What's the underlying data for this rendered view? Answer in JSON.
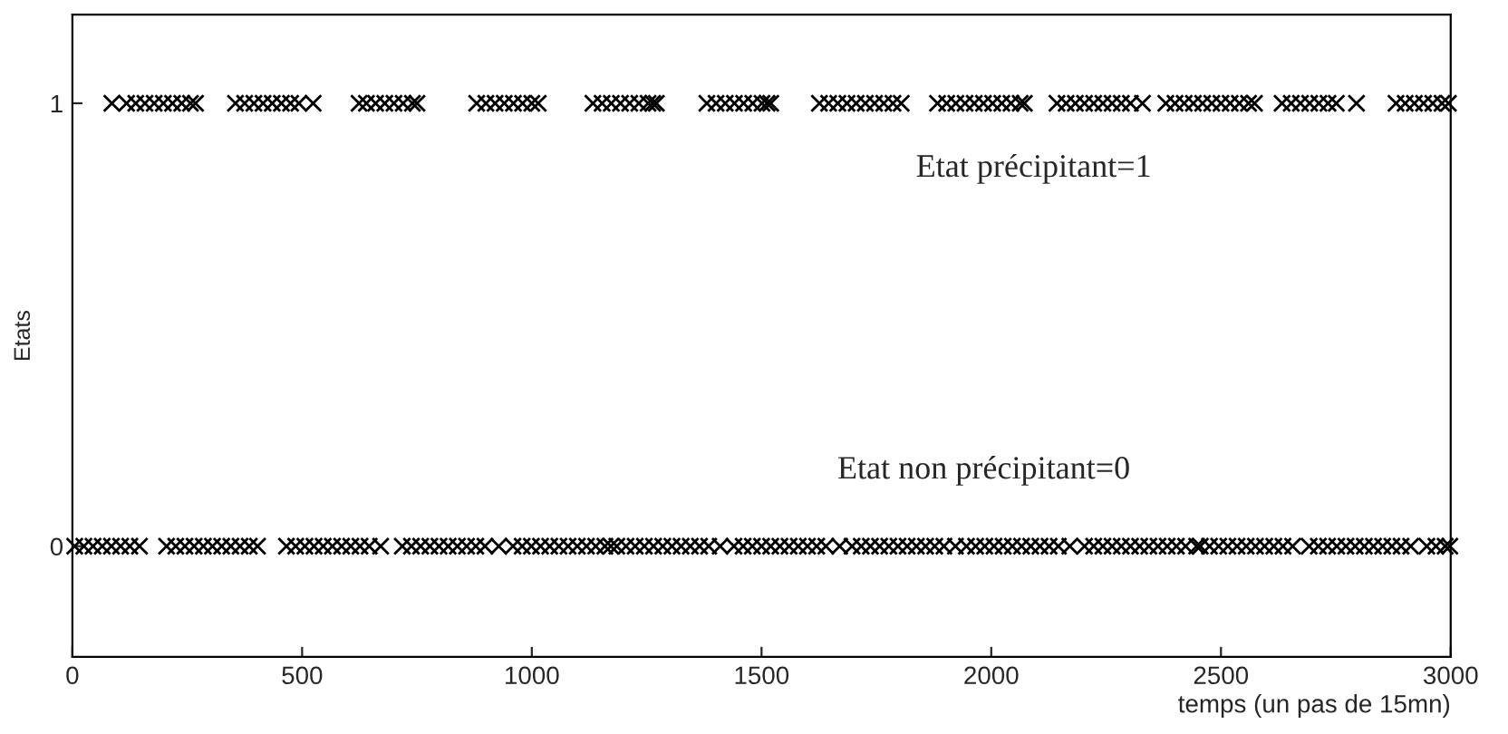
{
  "chart_data": {
    "type": "scatter",
    "xlabel": "temps (un pas de 15mn)",
    "ylabel": "Etats",
    "xlim": [
      0,
      3000
    ],
    "xticks": [
      0,
      500,
      1000,
      1500,
      2000,
      2500,
      3000
    ],
    "ylim": [
      -0.25,
      1.2
    ],
    "yticks": [
      0,
      1
    ],
    "grid": false,
    "legend": false,
    "marker": "cross",
    "annotations": [
      "Etat précipitant=1",
      "Etat non précipitant=0"
    ],
    "series": [
      {
        "color": "#000000",
        "x": [
          86,
          118,
          138,
          158,
          178,
          198,
          218,
          238,
          257,
          268,
          355,
          375,
          395,
          415,
          435,
          455,
          475,
          493,
          524,
          624,
          640,
          660,
          680,
          700,
          720,
          740,
          750,
          880,
          900,
          920,
          940,
          960,
          980,
          1000,
          1014,
          1133,
          1153,
          1173,
          1193,
          1213,
          1233,
          1253,
          1263,
          1271,
          1381,
          1401,
          1421,
          1441,
          1461,
          1481,
          1501,
          1512,
          1520,
          1626,
          1646,
          1666,
          1686,
          1706,
          1726,
          1746,
          1766,
          1786,
          1804,
          1883,
          1903,
          1923,
          1943,
          1963,
          1983,
          2003,
          2023,
          2043,
          2063,
          2072,
          2143,
          2163,
          2183,
          2203,
          2223,
          2243,
          2263,
          2283,
          2303,
          2329,
          2380,
          2400,
          2420,
          2440,
          2460,
          2480,
          2500,
          2520,
          2540,
          2560,
          2573,
          2633,
          2653,
          2673,
          2693,
          2713,
          2733,
          2751,
          2795,
          2881,
          2901,
          2921,
          2941,
          2961,
          2981,
          2995
        ],
        "values": [
          1,
          1,
          1,
          1,
          1,
          1,
          1,
          1,
          1,
          1,
          1,
          1,
          1,
          1,
          1,
          1,
          1,
          1,
          1,
          1,
          1,
          1,
          1,
          1,
          1,
          1,
          1,
          1,
          1,
          1,
          1,
          1,
          1,
          1,
          1,
          1,
          1,
          1,
          1,
          1,
          1,
          1,
          1,
          1,
          1,
          1,
          1,
          1,
          1,
          1,
          1,
          1,
          1,
          1,
          1,
          1,
          1,
          1,
          1,
          1,
          1,
          1,
          1,
          1,
          1,
          1,
          1,
          1,
          1,
          1,
          1,
          1,
          1,
          1,
          1,
          1,
          1,
          1,
          1,
          1,
          1,
          1,
          1,
          1,
          1,
          1,
          1,
          1,
          1,
          1,
          1,
          1,
          1,
          1,
          1,
          1,
          1,
          1,
          1,
          1,
          1,
          1,
          1,
          1,
          1,
          1,
          1,
          1,
          1,
          1
        ]
      },
      {
        "color": "#000000",
        "x": [
          5,
          25,
          45,
          65,
          85,
          105,
          125,
          146,
          205,
          225,
          245,
          265,
          285,
          305,
          325,
          345,
          365,
          385,
          403,
          466,
          486,
          506,
          526,
          546,
          566,
          586,
          606,
          626,
          646,
          671,
          718,
          738,
          758,
          778,
          798,
          818,
          838,
          858,
          878,
          898,
          928,
          959,
          979,
          999,
          1019,
          1039,
          1059,
          1079,
          1099,
          1119,
          1139,
          1159,
          1172,
          1185,
          1205,
          1225,
          1245,
          1265,
          1285,
          1305,
          1325,
          1345,
          1365,
          1385,
          1410,
          1440,
          1460,
          1480,
          1500,
          1520,
          1540,
          1560,
          1580,
          1600,
          1620,
          1640,
          1670,
          1697,
          1717,
          1737,
          1757,
          1777,
          1797,
          1817,
          1837,
          1857,
          1877,
          1897,
          1922,
          1946,
          1966,
          1986,
          2006,
          2026,
          2046,
          2066,
          2086,
          2106,
          2126,
          2146,
          2171,
          2203,
          2223,
          2243,
          2263,
          2283,
          2303,
          2323,
          2343,
          2363,
          2383,
          2403,
          2423,
          2447,
          2455,
          2475,
          2495,
          2515,
          2535,
          2555,
          2575,
          2595,
          2615,
          2635,
          2656,
          2692,
          2712,
          2732,
          2752,
          2772,
          2792,
          2812,
          2832,
          2852,
          2872,
          2892,
          2913,
          2948,
          2968,
          2988,
          2998
        ],
        "values": [
          0,
          0,
          0,
          0,
          0,
          0,
          0,
          0,
          0,
          0,
          0,
          0,
          0,
          0,
          0,
          0,
          0,
          0,
          0,
          0,
          0,
          0,
          0,
          0,
          0,
          0,
          0,
          0,
          0,
          0,
          0,
          0,
          0,
          0,
          0,
          0,
          0,
          0,
          0,
          0,
          0,
          0,
          0,
          0,
          0,
          0,
          0,
          0,
          0,
          0,
          0,
          0,
          0,
          0,
          0,
          0,
          0,
          0,
          0,
          0,
          0,
          0,
          0,
          0,
          0,
          0,
          0,
          0,
          0,
          0,
          0,
          0,
          0,
          0,
          0,
          0,
          0,
          0,
          0,
          0,
          0,
          0,
          0,
          0,
          0,
          0,
          0,
          0,
          0,
          0,
          0,
          0,
          0,
          0,
          0,
          0,
          0,
          0,
          0,
          0,
          0,
          0,
          0,
          0,
          0,
          0,
          0,
          0,
          0,
          0,
          0,
          0,
          0,
          0,
          0,
          0,
          0,
          0,
          0,
          0,
          0,
          0,
          0,
          0,
          0,
          0,
          0,
          0,
          0,
          0,
          0,
          0,
          0,
          0,
          0,
          0,
          0,
          0,
          0,
          0,
          0
        ]
      }
    ]
  }
}
